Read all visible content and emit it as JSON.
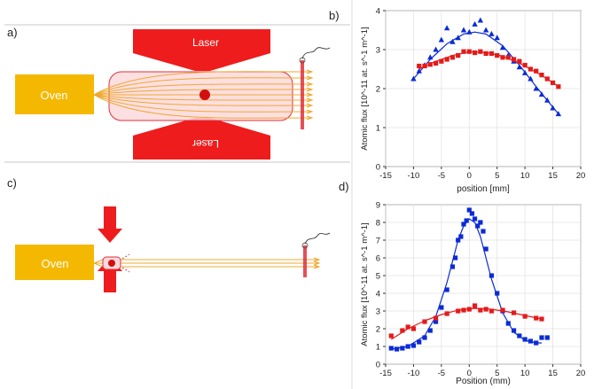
{
  "panels": {
    "a": "a)",
    "b": "b)",
    "c": "c)",
    "d": "d)"
  },
  "schematic_top": {
    "oven_label": "Oven",
    "laser_top_label": "Laser",
    "laser_bottom_label": "Laser"
  },
  "schematic_bottom": {
    "oven_label": "Oven"
  },
  "colors": {
    "oven": "#f5b800",
    "laser": "#ee1c1c",
    "beam": "#f0a830",
    "blue_series": "#0a2bd6",
    "red_series": "#e41a1a"
  },
  "chart_data": [
    {
      "type": "scatter",
      "panel": "b)",
      "xlabel": "position [mm]",
      "ylabel": "Atomic flux [10^-11 at. s^-1 m^-1]",
      "xlim": [
        -15,
        20
      ],
      "ylim": [
        0,
        4
      ],
      "xticks": [
        -15,
        -10,
        -5,
        0,
        5,
        10,
        15,
        20
      ],
      "yticks": [
        0,
        1,
        2,
        3,
        4
      ],
      "grid": true,
      "series": [
        {
          "color": "#0a2bd6",
          "marker": "triangle",
          "x": [
            -10,
            -9,
            -8,
            -7,
            -6,
            -5,
            -4,
            -3,
            -2,
            -1,
            0,
            1,
            2,
            3,
            4,
            5,
            6,
            7,
            8,
            9,
            10,
            11,
            12,
            13,
            14,
            15,
            16
          ],
          "y": [
            2.25,
            2.45,
            2.6,
            2.8,
            3.0,
            3.25,
            3.55,
            3.2,
            3.3,
            3.5,
            3.45,
            3.65,
            3.75,
            3.5,
            3.4,
            3.3,
            3.05,
            2.85,
            2.7,
            2.55,
            2.4,
            2.25,
            2.0,
            1.85,
            1.7,
            1.5,
            1.35
          ],
          "fit": [
            [
              -10,
              2.25
            ],
            [
              -7,
              2.75
            ],
            [
              -4,
              3.15
            ],
            [
              -1,
              3.4
            ],
            [
              1,
              3.45
            ],
            [
              3,
              3.4
            ],
            [
              6,
              3.1
            ],
            [
              9,
              2.6
            ],
            [
              12,
              2.05
            ],
            [
              14,
              1.7
            ],
            [
              16,
              1.35
            ]
          ]
        },
        {
          "color": "#e41a1a",
          "marker": "square",
          "x": [
            -9,
            -8,
            -7,
            -6,
            -5,
            -4,
            -3,
            -2,
            -1,
            0,
            1,
            2,
            3,
            4,
            5,
            6,
            7,
            8,
            9,
            10,
            11,
            12,
            13,
            14,
            15,
            16
          ],
          "y": [
            2.58,
            2.58,
            2.62,
            2.65,
            2.7,
            2.75,
            2.8,
            2.85,
            2.95,
            2.95,
            2.92,
            2.95,
            2.9,
            2.9,
            2.85,
            2.8,
            2.8,
            2.75,
            2.7,
            2.6,
            2.5,
            2.45,
            2.35,
            2.25,
            2.15,
            2.05
          ],
          "fit": [
            [
              -9,
              2.5
            ],
            [
              -6,
              2.7
            ],
            [
              -3,
              2.85
            ],
            [
              0,
              2.94
            ],
            [
              3,
              2.93
            ],
            [
              6,
              2.83
            ],
            [
              9,
              2.65
            ],
            [
              12,
              2.42
            ],
            [
              14,
              2.25
            ],
            [
              16,
              2.05
            ]
          ]
        }
      ]
    },
    {
      "type": "scatter",
      "panel": "d)",
      "xlabel": "Position (mm)",
      "ylabel": "Atomic flux [10^-11 at. s^-1 m^-1]",
      "xlim": [
        -15,
        20
      ],
      "ylim": [
        0,
        9
      ],
      "xticks": [
        -15,
        -10,
        -5,
        0,
        5,
        10,
        15,
        20
      ],
      "yticks": [
        0,
        1,
        2,
        3,
        4,
        5,
        6,
        7,
        8,
        9
      ],
      "grid": true,
      "series": [
        {
          "color": "#0a2bd6",
          "marker": "square",
          "x": [
            -14,
            -13,
            -12,
            -11,
            -10,
            -9,
            -8,
            -7,
            -6,
            -5,
            -4,
            -3,
            -2.5,
            -2,
            -1.5,
            -1,
            -0.5,
            0,
            0.5,
            1,
            1.5,
            2,
            2.5,
            3,
            4,
            5,
            6,
            7,
            8,
            9,
            10,
            11,
            12,
            13,
            14
          ],
          "y": [
            0.9,
            0.85,
            0.9,
            1.0,
            1.05,
            1.25,
            1.5,
            1.9,
            2.4,
            3.2,
            4.2,
            5.5,
            6.0,
            7.0,
            7.2,
            7.9,
            8.1,
            8.7,
            8.5,
            8.2,
            7.8,
            8.0,
            7.5,
            6.5,
            5.0,
            4.0,
            3.0,
            2.3,
            1.9,
            1.6,
            1.4,
            1.3,
            1.2,
            1.5,
            1.5
          ],
          "fit": [
            [
              -14,
              0.85
            ],
            [
              -11,
              1.0
            ],
            [
              -8,
              1.6
            ],
            [
              -6,
              2.7
            ],
            [
              -4,
              4.6
            ],
            [
              -2,
              7.0
            ],
            [
              -1,
              7.8
            ],
            [
              0,
              8.2
            ],
            [
              1,
              8.0
            ],
            [
              2,
              7.2
            ],
            [
              4,
              4.8
            ],
            [
              6,
              2.9
            ],
            [
              8,
              1.8
            ],
            [
              10,
              1.35
            ],
            [
              12,
              1.2
            ],
            [
              13,
              1.2
            ]
          ]
        },
        {
          "color": "#e41a1a",
          "marker": "square",
          "x": [
            -14,
            -12,
            -11,
            -10,
            -8,
            -6,
            -4,
            -2,
            -1,
            0,
            1,
            2,
            3,
            4,
            6,
            8,
            10,
            12,
            13
          ],
          "y": [
            1.6,
            1.9,
            2.1,
            2.0,
            2.4,
            2.6,
            2.85,
            3.0,
            3.05,
            3.1,
            3.3,
            3.05,
            3.1,
            3.0,
            3.05,
            2.9,
            2.7,
            2.6,
            2.55
          ],
          "fit": [
            [
              -14,
              1.4
            ],
            [
              -11,
              2.0
            ],
            [
              -8,
              2.45
            ],
            [
              -5,
              2.8
            ],
            [
              -2,
              3.05
            ],
            [
              1,
              3.15
            ],
            [
              4,
              3.1
            ],
            [
              7,
              2.95
            ],
            [
              10,
              2.75
            ],
            [
              13,
              2.55
            ]
          ]
        }
      ]
    }
  ]
}
